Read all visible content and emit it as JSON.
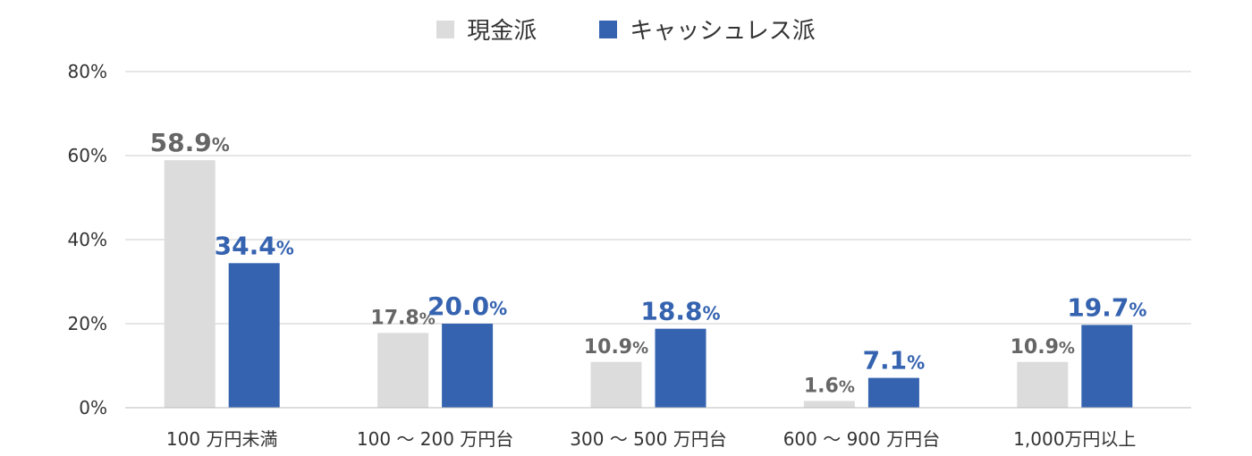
{
  "chart_data": {
    "type": "bar",
    "categories": [
      "100 万円未満",
      "100 〜 200 万円台",
      "300 〜 500 万円台",
      "600 〜 900 万円台",
      "1,000万円以上"
    ],
    "series": [
      {
        "name": "現金派",
        "values": [
          58.9,
          17.8,
          10.9,
          1.6,
          10.9
        ],
        "color": "#dcdcdc",
        "label_color": "#666666"
      },
      {
        "name": "キャッシュレス派",
        "values": [
          34.4,
          20.0,
          18.8,
          7.1,
          19.7
        ],
        "color": "#3563b0",
        "label_color": "#3563b0"
      }
    ],
    "data_label_unit": "%",
    "y_ticks": [
      "0%",
      "20%",
      "40%",
      "60%",
      "80%"
    ],
    "ylim": [
      0,
      80
    ],
    "grid": true,
    "legend_position": "top-center"
  }
}
